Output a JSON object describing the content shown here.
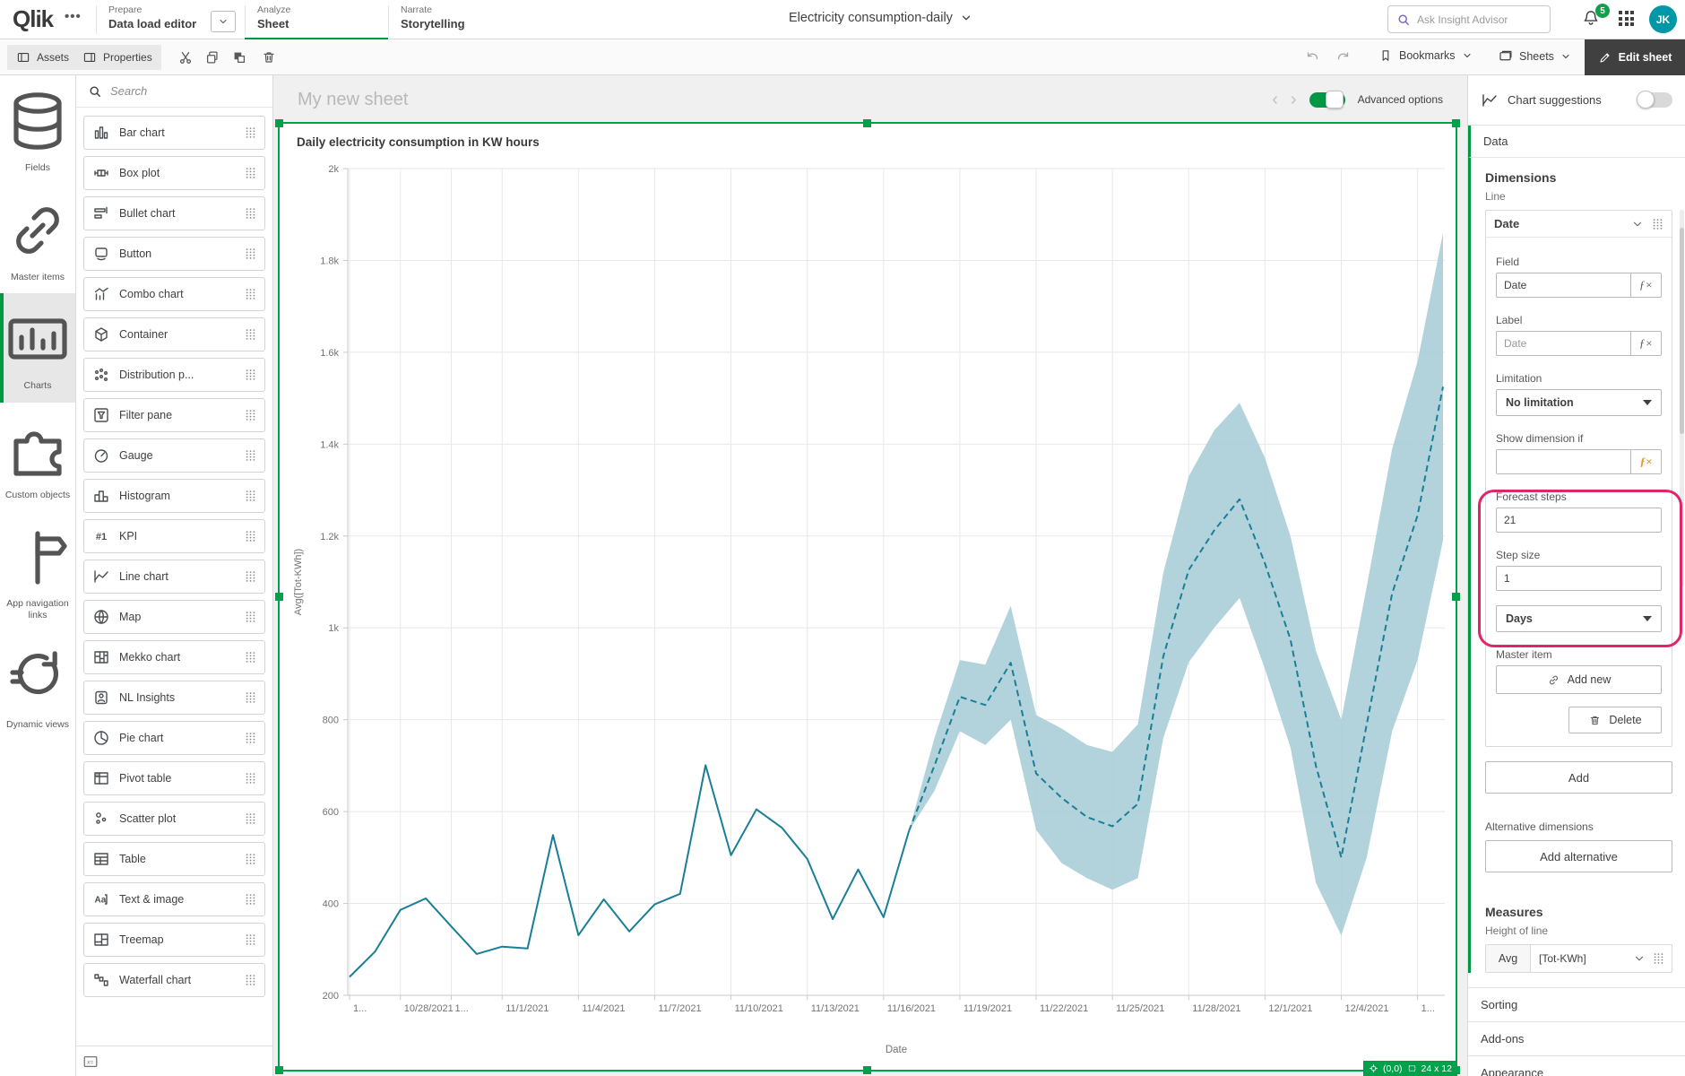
{
  "topbar": {
    "logo": "Qlik",
    "more_menu": "•••",
    "tabs": [
      {
        "section": "Prepare",
        "label": "Data load editor",
        "has_dropdown": true,
        "active": false
      },
      {
        "section": "Analyze",
        "label": "Sheet",
        "has_dropdown": false,
        "active": true
      },
      {
        "section": "Narrate",
        "label": "Storytelling",
        "has_dropdown": false,
        "active": false
      }
    ],
    "app_title": "Electricity consumption-daily",
    "search_placeholder": "Ask Insight Advisor",
    "notification_count": "5",
    "avatar_initials": "JK"
  },
  "toolbar": {
    "assets_label": "Assets",
    "properties_label": "Properties",
    "edit_icons": [
      "cut-icon",
      "copy-icon",
      "paste-icon",
      "delete-icon"
    ],
    "bookmarks_label": "Bookmarks",
    "sheets_label": "Sheets",
    "edit_sheet_label": "Edit sheet"
  },
  "nav_rail": {
    "items": [
      {
        "label": "Fields",
        "icon": "database-icon",
        "active": false
      },
      {
        "label": "Master items",
        "icon": "link-icon",
        "active": false
      },
      {
        "label": "Charts",
        "icon": "charts-icon",
        "active": true
      },
      {
        "label": "Custom objects",
        "icon": "puzzle-icon",
        "active": false
      },
      {
        "label": "App navigation links",
        "icon": "signpost-icon",
        "active": false
      },
      {
        "label": "Dynamic views",
        "icon": "refresh-icon",
        "active": false
      }
    ]
  },
  "chart_list": {
    "search_placeholder": "Search",
    "items": [
      {
        "label": "Bar chart",
        "icon": "bar-chart-icon"
      },
      {
        "label": "Box plot",
        "icon": "box-plot-icon"
      },
      {
        "label": "Bullet chart",
        "icon": "bullet-chart-icon"
      },
      {
        "label": "Button",
        "icon": "button-icon"
      },
      {
        "label": "Combo chart",
        "icon": "combo-chart-icon"
      },
      {
        "label": "Container",
        "icon": "container-icon"
      },
      {
        "label": "Distribution p...",
        "icon": "distribution-plot-icon"
      },
      {
        "label": "Filter pane",
        "icon": "filter-pane-icon"
      },
      {
        "label": "Gauge",
        "icon": "gauge-icon"
      },
      {
        "label": "Histogram",
        "icon": "histogram-icon"
      },
      {
        "label": "KPI",
        "icon": "kpi-icon"
      },
      {
        "label": "Line chart",
        "icon": "line-chart-icon"
      },
      {
        "label": "Map",
        "icon": "map-icon"
      },
      {
        "label": "Mekko chart",
        "icon": "mekko-chart-icon"
      },
      {
        "label": "NL Insights",
        "icon": "nl-insights-icon"
      },
      {
        "label": "Pie chart",
        "icon": "pie-chart-icon"
      },
      {
        "label": "Pivot table",
        "icon": "pivot-table-icon"
      },
      {
        "label": "Scatter plot",
        "icon": "scatter-plot-icon"
      },
      {
        "label": "Table",
        "icon": "table-icon"
      },
      {
        "label": "Text & image",
        "icon": "text-image-icon"
      },
      {
        "label": "Treemap",
        "icon": "treemap-icon"
      },
      {
        "label": "Waterfall chart",
        "icon": "waterfall-chart-icon"
      }
    ]
  },
  "canvas": {
    "sheet_title": "My new sheet",
    "advanced_options_label": "Advanced options",
    "selection_badge": {
      "position": "(0,0)",
      "size": "24 x 12"
    }
  },
  "properties_panel": {
    "chart_suggestions_label": "Chart suggestions",
    "data_section_label": "Data",
    "dimensions_heading": "Dimensions",
    "dimension_type_label": "Line",
    "dimension_card": {
      "title": "Date",
      "field_label": "Field",
      "field_value": "Date",
      "label_label": "Label",
      "label_placeholder": "Date",
      "limitation_label": "Limitation",
      "limitation_value": "No limitation",
      "show_dimension_if_label": "Show dimension if",
      "forecast_steps_label": "Forecast steps",
      "forecast_steps_value": "21",
      "step_size_label": "Step size",
      "step_size_value": "1",
      "step_unit_value": "Days",
      "master_item_label": "Master item",
      "add_new_label": "Add new",
      "delete_label": "Delete"
    },
    "add_button_label": "Add",
    "alternative_dimensions_label": "Alternative dimensions",
    "add_alternative_label": "Add alternative",
    "measures_heading": "Measures",
    "measure_type_label": "Height of line",
    "measure_card": {
      "aggregation": "Avg",
      "field": "[Tot-KWh]"
    },
    "sections": [
      "Sorting",
      "Add-ons",
      "Appearance"
    ],
    "highlight_color": "#e0256b"
  },
  "chart_data": {
    "type": "line",
    "title": "Daily electricity consumption in KW hours",
    "xlabel": "Date",
    "ylabel": "Avg([Tot-KWh])",
    "ylim": [
      200,
      2000
    ],
    "grid": true,
    "legend_position": "none",
    "start_date": "10/26/2021",
    "x_total_days": 43,
    "y_ticks": [
      {
        "value": 200,
        "label": "200"
      },
      {
        "value": 400,
        "label": "400"
      },
      {
        "value": 600,
        "label": "600"
      },
      {
        "value": 800,
        "label": "800"
      },
      {
        "value": 1000,
        "label": "1k"
      },
      {
        "value": 1200,
        "label": "1.2k"
      },
      {
        "value": 1400,
        "label": "1.4k"
      },
      {
        "value": 1600,
        "label": "1.6k"
      },
      {
        "value": 1800,
        "label": "1.8k"
      },
      {
        "value": 2000,
        "label": "2k"
      }
    ],
    "x_ticks": [
      {
        "day": 0,
        "label": "1..."
      },
      {
        "day": 2,
        "label": "10/28/2021"
      },
      {
        "day": 4,
        "label": "1..."
      },
      {
        "day": 6,
        "label": "11/1/2021"
      },
      {
        "day": 9,
        "label": "11/4/2021"
      },
      {
        "day": 12,
        "label": "11/7/2021"
      },
      {
        "day": 15,
        "label": "11/10/2021"
      },
      {
        "day": 18,
        "label": "11/13/2021"
      },
      {
        "day": 21,
        "label": "11/16/2021"
      },
      {
        "day": 24,
        "label": "11/19/2021"
      },
      {
        "day": 27,
        "label": "11/22/2021"
      },
      {
        "day": 30,
        "label": "11/25/2021"
      },
      {
        "day": 33,
        "label": "11/28/2021"
      },
      {
        "day": 36,
        "label": "12/1/2021"
      },
      {
        "day": 39,
        "label": "12/4/2021"
      },
      {
        "day": 42,
        "label": "1..."
      }
    ],
    "series": [
      {
        "name": "Actual (Avg Tot-KWh)",
        "style": "solid",
        "start_day": 0,
        "values": [
          240,
          295,
          386,
          411,
          350,
          290,
          306,
          302,
          549,
          331,
          409,
          339,
          398,
          421,
          701,
          505,
          605,
          565,
          497,
          366,
          474,
          370,
          558
        ]
      },
      {
        "name": "Forecast",
        "style": "dashed",
        "start_day": 22,
        "values": [
          558,
          700,
          850,
          832,
          924,
          683,
          630,
          588,
          568,
          617,
          938,
          1126,
          1212,
          1280,
          1140,
          975,
          700,
          500,
          790,
          1075,
          1245,
          1525
        ],
        "upper": [
          558,
          760,
          930,
          920,
          1048,
          810,
          781,
          745,
          730,
          790,
          1120,
          1330,
          1430,
          1490,
          1370,
          1200,
          950,
          800,
          1090,
          1390,
          1580,
          1860
        ],
        "lower": [
          558,
          645,
          775,
          745,
          800,
          560,
          488,
          455,
          430,
          455,
          760,
          925,
          1000,
          1065,
          910,
          740,
          445,
          330,
          500,
          775,
          930,
          1190
        ]
      }
    ],
    "colors": {
      "line": "#1a7e96",
      "band": "#a9cdd7",
      "grid": "#e8e8e8",
      "axis": "#c9c9c9",
      "tick_text": "#737373"
    }
  }
}
